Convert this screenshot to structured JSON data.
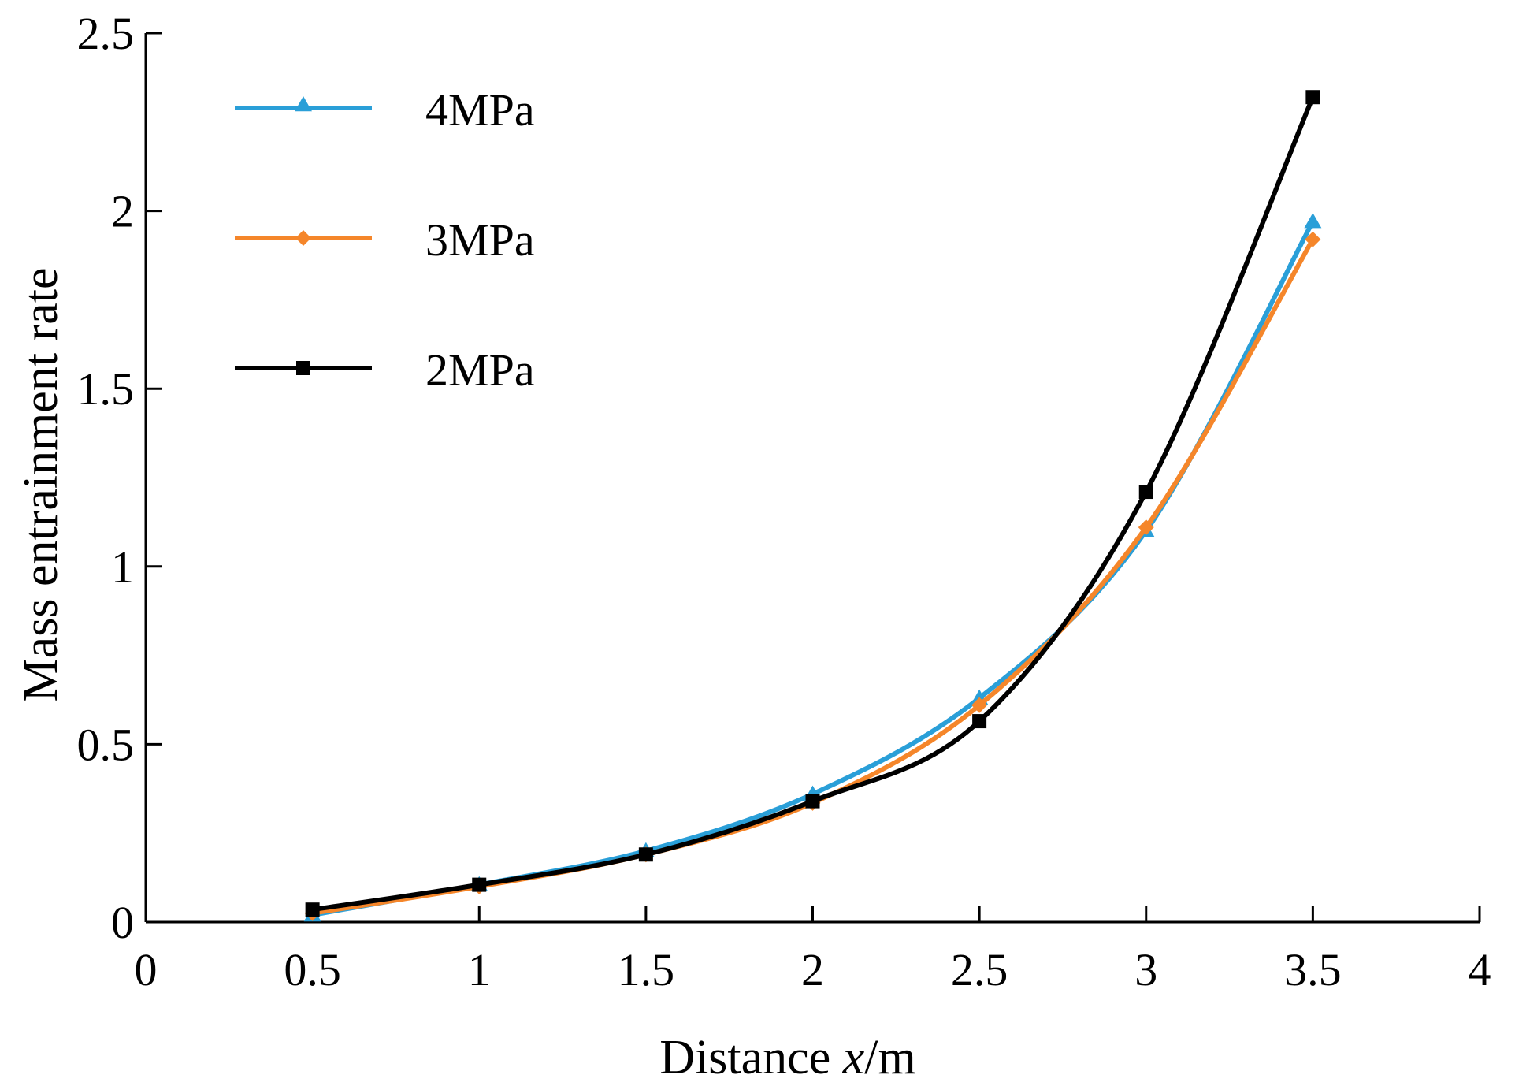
{
  "chart_data": {
    "type": "line",
    "title": "",
    "xlabel": "Distance x/m",
    "xlabel_prefix": "Distance ",
    "xlabel_var": "x",
    "xlabel_suffix": "/m",
    "ylabel": "Mass entrainment rate",
    "xlim": [
      0,
      4
    ],
    "ylim": [
      0,
      2.5
    ],
    "xticks": [
      0,
      0.5,
      1,
      1.5,
      2,
      2.5,
      3,
      3.5,
      4
    ],
    "xtick_labels": [
      "0",
      "0.5",
      "1",
      "1.5",
      "2",
      "2.5",
      "3",
      "3.5",
      "4"
    ],
    "yticks": [
      0,
      0.5,
      1,
      1.5,
      2,
      2.5
    ],
    "ytick_labels": [
      "0",
      "0.5",
      "1",
      "1.5",
      "2",
      "2.5"
    ],
    "grid": false,
    "legend_position": "top-left",
    "x": [
      0.5,
      1,
      1.5,
      2,
      2.5,
      3,
      3.5
    ],
    "series": [
      {
        "name": "4MPa",
        "marker": "triangle",
        "color": "#2a9fd8",
        "values": [
          0.02,
          0.105,
          0.2,
          0.36,
          0.63,
          1.1,
          1.97
        ]
      },
      {
        "name": "3MPa",
        "marker": "diamond",
        "color": "#f5862a",
        "values": [
          0.025,
          0.1,
          0.19,
          0.335,
          0.61,
          1.11,
          1.92
        ]
      },
      {
        "name": "2MPa",
        "marker": "square",
        "color": "#000000",
        "values": [
          0.035,
          0.105,
          0.19,
          0.34,
          0.565,
          1.21,
          2.32
        ]
      }
    ]
  }
}
